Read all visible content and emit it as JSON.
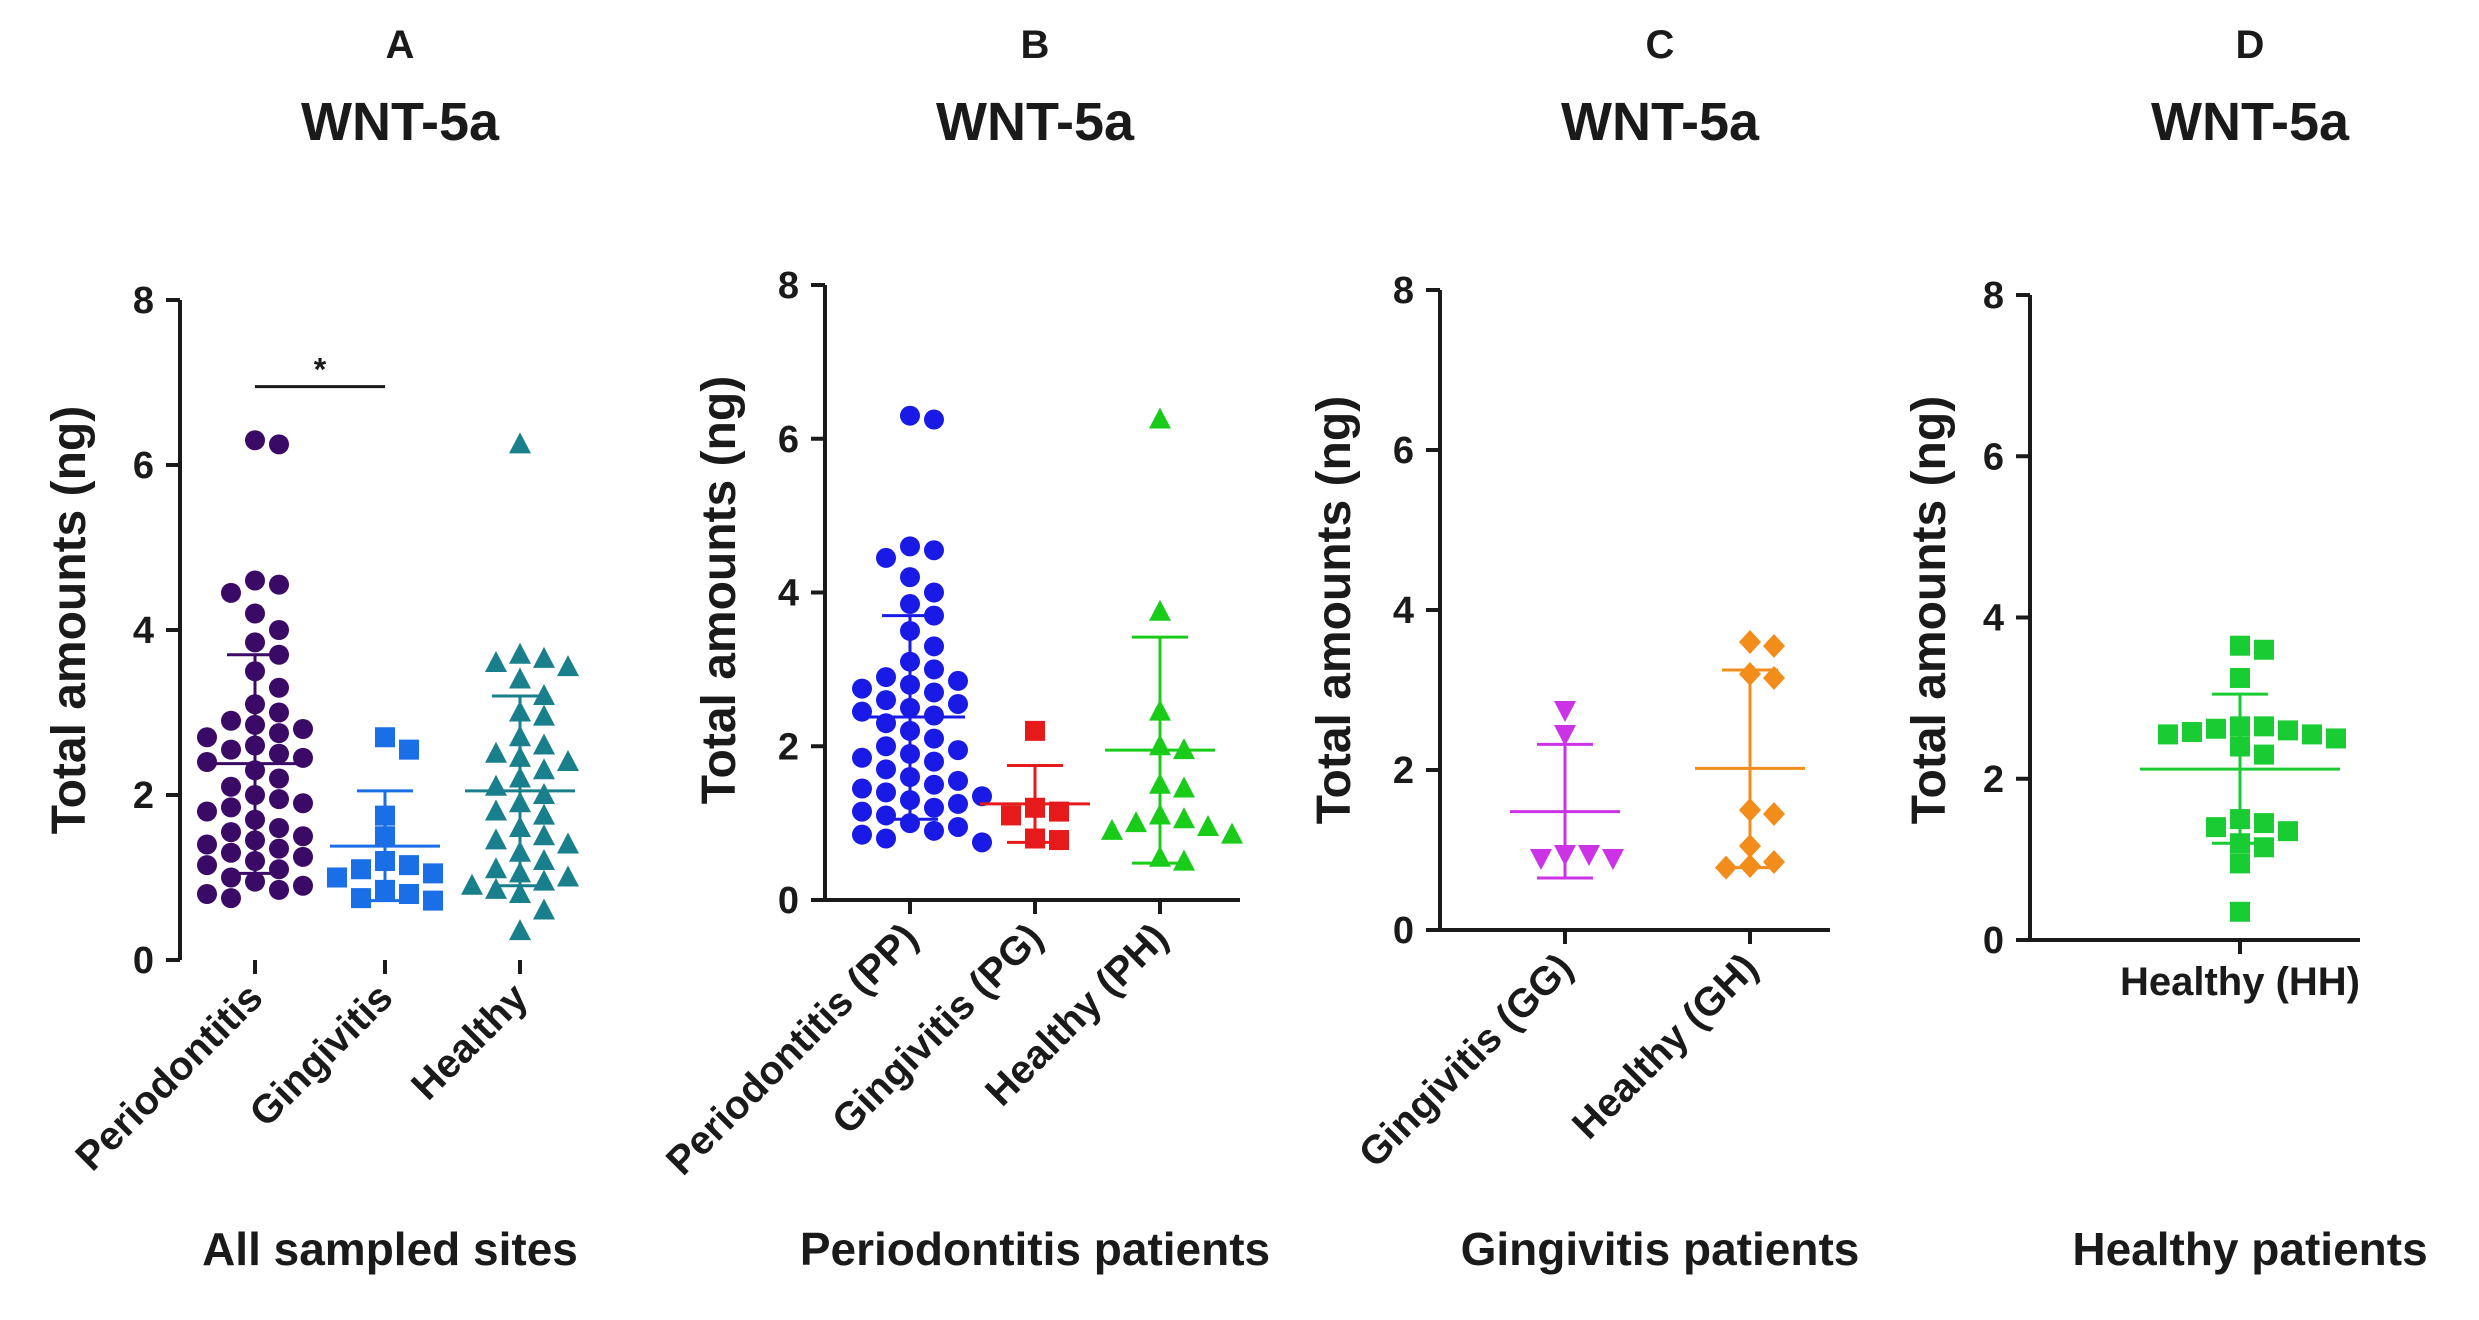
{
  "chart_data": [
    {
      "type": "scatter",
      "panel": "A",
      "title": "WNT-5a",
      "ylabel": "Total amounts (ng)",
      "xlabel": "All sampled sites",
      "ylim": [
        0,
        8
      ],
      "yticks": [
        0,
        2,
        4,
        6,
        8
      ],
      "categories": [
        "Periodontitis",
        "Gingivitis",
        "Healthy"
      ],
      "series": [
        {
          "name": "Periodontitis",
          "marker": "circle",
          "color": "#3a0a66",
          "mean": 2.38,
          "sd_low": 1.05,
          "sd_high": 3.7,
          "values": [
            6.3,
            6.25,
            4.6,
            4.55,
            4.45,
            4.2,
            4.0,
            3.85,
            3.7,
            3.5,
            3.3,
            3.1,
            3.0,
            2.9,
            2.85,
            2.8,
            2.75,
            2.7,
            2.6,
            2.55,
            2.5,
            2.45,
            2.4,
            2.3,
            2.2,
            2.1,
            2.0,
            1.95,
            1.9,
            1.85,
            1.8,
            1.7,
            1.6,
            1.55,
            1.5,
            1.45,
            1.4,
            1.35,
            1.3,
            1.25,
            1.2,
            1.15,
            1.1,
            1.0,
            0.95,
            0.9,
            0.85,
            0.8,
            0.75
          ]
        },
        {
          "name": "Gingivitis",
          "marker": "square",
          "color": "#1a6ee6",
          "mean": 1.38,
          "sd_low": 0.72,
          "sd_high": 2.05,
          "values": [
            2.7,
            2.55,
            1.75,
            1.5,
            1.2,
            1.15,
            1.1,
            1.05,
            1.0,
            0.85,
            0.8,
            0.75,
            0.72
          ]
        },
        {
          "name": "Healthy",
          "marker": "triangle",
          "color": "#1a7f8c",
          "mean": 2.05,
          "sd_low": 0.9,
          "sd_high": 3.2,
          "values": [
            6.25,
            3.7,
            3.65,
            3.6,
            3.55,
            3.4,
            3.2,
            3.0,
            2.95,
            2.7,
            2.6,
            2.5,
            2.45,
            2.4,
            2.3,
            2.2,
            2.1,
            2.0,
            1.9,
            1.8,
            1.75,
            1.6,
            1.5,
            1.45,
            1.4,
            1.3,
            1.2,
            1.1,
            1.05,
            1.0,
            0.95,
            0.9,
            0.85,
            0.8,
            0.6,
            0.35
          ]
        }
      ],
      "annotations": [
        {
          "text": "*",
          "between": [
            "Periodontitis",
            "Gingivitis"
          ],
          "y": 6.95
        }
      ]
    },
    {
      "type": "scatter",
      "panel": "B",
      "title": "WNT-5a",
      "ylabel": "Total amounts (ng)",
      "xlabel": "Periodontitis patients",
      "ylim": [
        0,
        8
      ],
      "yticks": [
        0,
        2,
        4,
        6,
        8
      ],
      "categories": [
        "Periodontitis (PP)",
        "Gingivitis (PG)",
        "Healthy (PH)"
      ],
      "series": [
        {
          "name": "Periodontitis (PP)",
          "marker": "circle",
          "color": "#1a1ae6",
          "mean": 2.38,
          "sd_low": 1.05,
          "sd_high": 3.7,
          "values": [
            6.3,
            6.25,
            4.6,
            4.55,
            4.45,
            4.2,
            4.0,
            3.85,
            3.7,
            3.5,
            3.3,
            3.1,
            3.0,
            2.9,
            2.85,
            2.8,
            2.75,
            2.7,
            2.6,
            2.55,
            2.5,
            2.45,
            2.4,
            2.3,
            2.2,
            2.1,
            2.0,
            1.95,
            1.9,
            1.85,
            1.8,
            1.7,
            1.6,
            1.55,
            1.5,
            1.45,
            1.4,
            1.35,
            1.3,
            1.25,
            1.2,
            1.15,
            1.1,
            1.0,
            0.95,
            0.9,
            0.85,
            0.8,
            0.75
          ]
        },
        {
          "name": "Gingivitis (PG)",
          "marker": "square",
          "color": "#e61a1a",
          "mean": 1.25,
          "sd_low": 0.75,
          "sd_high": 1.75,
          "values": [
            2.2,
            1.2,
            1.15,
            1.1,
            0.8,
            0.78
          ]
        },
        {
          "name": "Healthy (PH)",
          "marker": "triangle",
          "color": "#1acc1a",
          "mean": 1.95,
          "sd_low": 0.48,
          "sd_high": 3.42,
          "values": [
            6.25,
            3.75,
            2.45,
            2.0,
            1.95,
            1.5,
            1.45,
            1.1,
            1.05,
            1.0,
            0.95,
            0.9,
            0.85,
            0.55,
            0.5
          ]
        }
      ]
    },
    {
      "type": "scatter",
      "panel": "C",
      "title": "WNT-5a",
      "ylabel": "Total amounts (ng)",
      "xlabel": "Gingivitis patients",
      "ylim": [
        0,
        8
      ],
      "yticks": [
        0,
        2,
        4,
        6,
        8
      ],
      "categories": [
        "Gingivitis (GG)",
        "Healthy (GH)"
      ],
      "series": [
        {
          "name": "Gingivitis (GG)",
          "marker": "triangle-down",
          "color": "#cc33e6",
          "mean": 1.48,
          "sd_low": 0.65,
          "sd_high": 2.32,
          "values": [
            2.75,
            2.45,
            0.95,
            0.95,
            0.9,
            0.9
          ]
        },
        {
          "name": "Healthy (GH)",
          "marker": "diamond",
          "color": "#f28c1a",
          "mean": 2.02,
          "sd_low": 0.78,
          "sd_high": 3.25,
          "values": [
            3.6,
            3.55,
            3.2,
            3.15,
            1.5,
            1.45,
            1.05,
            0.85,
            0.8,
            0.78
          ]
        }
      ]
    },
    {
      "type": "scatter",
      "panel": "D",
      "title": "WNT-5a",
      "ylabel": "Total amounts (ng)",
      "xlabel": "Healthy patients",
      "ylim": [
        0,
        8
      ],
      "yticks": [
        0,
        2,
        4,
        6,
        8
      ],
      "categories": [
        "Healthy (HH)"
      ],
      "series": [
        {
          "name": "Healthy (HH)",
          "marker": "square",
          "color": "#1acc33",
          "mean": 2.12,
          "sd_low": 1.2,
          "sd_high": 3.05,
          "values": [
            3.65,
            3.6,
            3.25,
            2.65,
            2.65,
            2.62,
            2.6,
            2.58,
            2.55,
            2.55,
            2.5,
            2.4,
            2.3,
            1.5,
            1.45,
            1.4,
            1.35,
            1.2,
            1.15,
            0.95,
            0.35
          ]
        }
      ]
    }
  ]
}
